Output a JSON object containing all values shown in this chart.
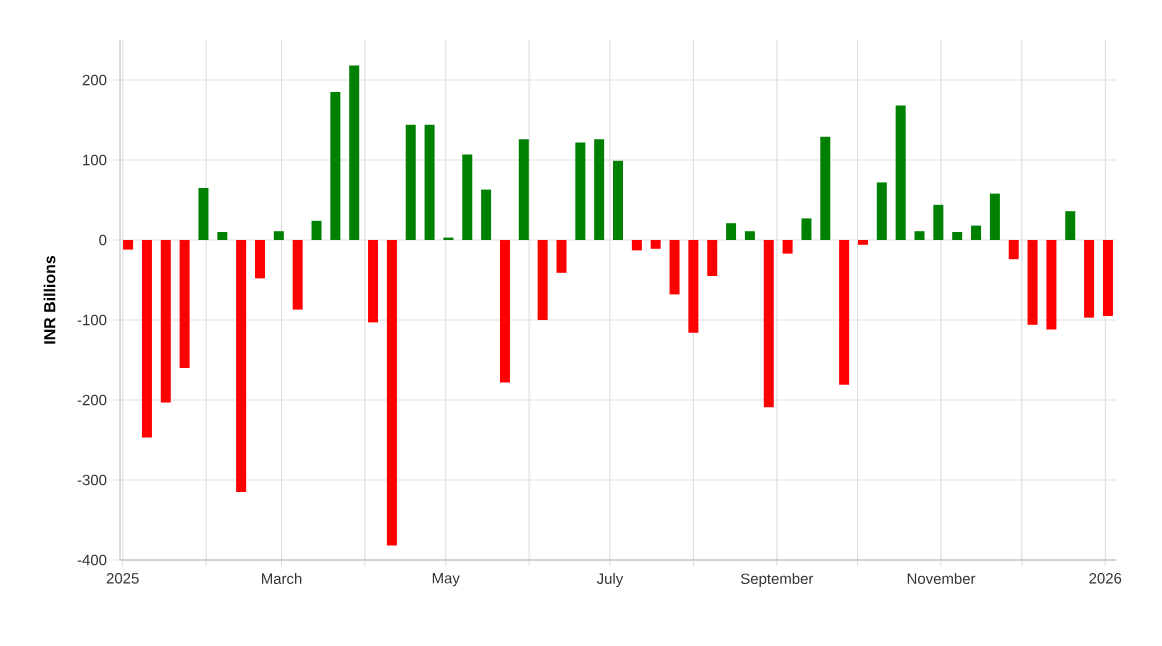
{
  "chart_data": {
    "type": "bar",
    "ylabel": "INR Billions",
    "x": [
      "2025-01-03",
      "2025-01-10",
      "2025-01-17",
      "2025-01-24",
      "2025-01-31",
      "2025-02-07",
      "2025-02-14",
      "2025-02-21",
      "2025-02-28",
      "2025-03-07",
      "2025-03-14",
      "2025-03-21",
      "2025-03-28",
      "2025-04-04",
      "2025-04-11",
      "2025-04-18",
      "2025-04-25",
      "2025-05-02",
      "2025-05-09",
      "2025-05-16",
      "2025-05-23",
      "2025-05-30",
      "2025-06-06",
      "2025-06-13",
      "2025-06-20",
      "2025-06-27",
      "2025-07-04",
      "2025-07-11",
      "2025-07-18",
      "2025-07-25",
      "2025-08-01",
      "2025-08-08",
      "2025-08-15",
      "2025-08-22",
      "2025-08-29",
      "2025-09-05",
      "2025-09-12",
      "2025-09-19",
      "2025-09-26",
      "2025-10-03",
      "2025-10-10",
      "2025-10-17",
      "2025-10-24",
      "2025-10-31",
      "2025-11-07",
      "2025-11-14",
      "2025-11-21",
      "2025-11-28",
      "2025-12-05",
      "2025-12-12",
      "2025-12-19",
      "2025-12-26",
      "2026-01-02"
    ],
    "values": [
      -12,
      -247,
      -203,
      -160,
      65,
      10,
      -315,
      -48,
      11,
      -87,
      24,
      185,
      218,
      -103,
      -382,
      144,
      144,
      3,
      107,
      63,
      -178,
      126,
      -100,
      -41,
      122,
      126,
      99,
      -13,
      -11,
      -68,
      -116,
      -45,
      21,
      11,
      -209,
      -17,
      27,
      129,
      -181,
      -6,
      72,
      168,
      11,
      44,
      10,
      18,
      58,
      -24,
      -106,
      -112,
      36,
      -97,
      -95
    ],
    "colors": [
      "#ff0000",
      "#ff0000",
      "#ff0000",
      "#ff0000",
      "#008000",
      "#008000",
      "#ff0000",
      "#ff0000",
      "#008000",
      "#ff0000",
      "#008000",
      "#008000",
      "#008000",
      "#ff0000",
      "#ff0000",
      "#008000",
      "#008000",
      "#008000",
      "#008000",
      "#008000",
      "#ff0000",
      "#008000",
      "#ff0000",
      "#ff0000",
      "#008000",
      "#008000",
      "#008000",
      "#ff0000",
      "#ff0000",
      "#ff0000",
      "#ff0000",
      "#ff0000",
      "#008000",
      "#008000",
      "#ff0000",
      "#ff0000",
      "#008000",
      "#008000",
      "#ff0000",
      "#ff0000",
      "#008000",
      "#008000",
      "#008000",
      "#008000",
      "#008000",
      "#008000",
      "#008000",
      "#ff0000",
      "#ff0000",
      "#ff0000",
      "#008000",
      "#ff0000",
      "#ff0000"
    ],
    "xlim": [
      "2024-12-31",
      "2026-01-05"
    ],
    "xticks": [
      {
        "value": "2025-01-01",
        "label": "2025"
      },
      {
        "value": "2025-02-01",
        "label": null
      },
      {
        "value": "2025-03-01",
        "label": "March"
      },
      {
        "value": "2025-04-01",
        "label": null
      },
      {
        "value": "2025-05-01",
        "label": "May"
      },
      {
        "value": "2025-06-01",
        "label": null
      },
      {
        "value": "2025-07-01",
        "label": "July"
      },
      {
        "value": "2025-08-01",
        "label": null
      },
      {
        "value": "2025-09-01",
        "label": "September"
      },
      {
        "value": "2025-10-01",
        "label": null
      },
      {
        "value": "2025-11-01",
        "label": "November"
      },
      {
        "value": "2025-12-01",
        "label": null
      },
      {
        "value": "2026-01-01",
        "label": "2026"
      }
    ],
    "ylim": [
      -400,
      250
    ],
    "yticks": [
      -400,
      -300,
      -200,
      -100,
      0,
      100,
      200
    ],
    "grid": true
  }
}
